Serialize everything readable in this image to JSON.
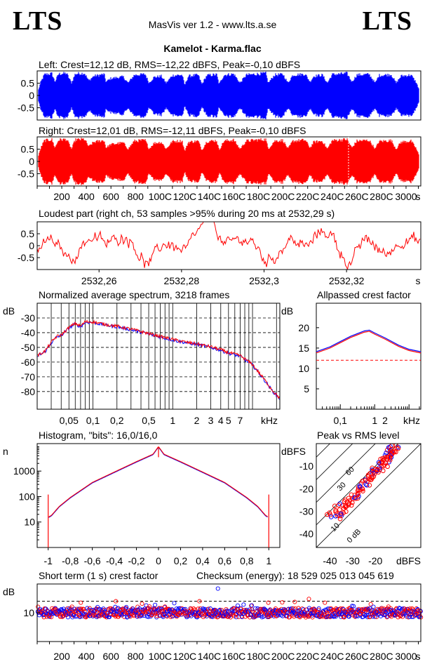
{
  "header": {
    "logo_left": "LTS",
    "logo_right": "LTS",
    "app_title": "MasVis ver 1.2 - www.lts.a.se",
    "file_title": "Kamelot - Karma.flac"
  },
  "colors": {
    "left": "#0000ff",
    "right": "#ff0000",
    "dash": "#ff0000",
    "grid": "#000000"
  },
  "chart_data": [
    {
      "id": "left",
      "type": "area",
      "title": "Left: Crest=12,12 dB, RMS=-12,22 dBFS, Peak=-0,10 dBFS",
      "y_ticks": [
        "0.5",
        "0",
        "-0.5"
      ],
      "ylim": [
        -1,
        1
      ],
      "xlim": [
        0,
        3120
      ],
      "envelope_points": [
        [
          0,
          0.05
        ],
        [
          30,
          0.6
        ],
        [
          60,
          0.92
        ],
        [
          120,
          0.96
        ],
        [
          145,
          0.6
        ],
        [
          175,
          0.95
        ],
        [
          240,
          0.97
        ],
        [
          280,
          0.55
        ],
        [
          310,
          0.95
        ],
        [
          385,
          0.98
        ],
        [
          420,
          0.65
        ],
        [
          460,
          0.85
        ],
        [
          545,
          0.93
        ],
        [
          560,
          0.6
        ],
        [
          600,
          0.75
        ],
        [
          700,
          0.82
        ],
        [
          740,
          0.55
        ],
        [
          790,
          0.9
        ],
        [
          880,
          0.93
        ],
        [
          910,
          0.55
        ],
        [
          950,
          0.8
        ],
        [
          1010,
          0.85
        ],
        [
          1050,
          0.55
        ],
        [
          1100,
          0.88
        ],
        [
          1180,
          0.9
        ],
        [
          1200,
          0.45
        ],
        [
          1230,
          0.85
        ],
        [
          1310,
          0.9
        ],
        [
          1340,
          0.5
        ],
        [
          1380,
          0.88
        ],
        [
          1460,
          0.92
        ],
        [
          1480,
          0.5
        ],
        [
          1520,
          0.9
        ],
        [
          1600,
          0.94
        ],
        [
          1650,
          0.55
        ],
        [
          1700,
          0.9
        ],
        [
          1800,
          0.95
        ],
        [
          1860,
          0.97
        ],
        [
          1880,
          0.55
        ],
        [
          1930,
          0.9
        ],
        [
          2000,
          0.93
        ],
        [
          2040,
          0.55
        ],
        [
          2080,
          0.9
        ],
        [
          2180,
          0.94
        ],
        [
          2220,
          0.6
        ],
        [
          2250,
          0.85
        ],
        [
          2320,
          0.9
        ],
        [
          2360,
          0.55
        ],
        [
          2400,
          0.92
        ],
        [
          2520,
          0.97
        ],
        [
          2560,
          0.6
        ],
        [
          2600,
          0.9
        ],
        [
          2700,
          0.93
        ],
        [
          2750,
          0.55
        ],
        [
          2780,
          0.88
        ],
        [
          2880,
          0.92
        ],
        [
          2920,
          0.55
        ],
        [
          2960,
          0.85
        ],
        [
          3040,
          0.9
        ],
        [
          3080,
          0.6
        ],
        [
          3120,
          0.1
        ]
      ]
    },
    {
      "id": "right",
      "type": "area",
      "title": "Right: Crest=12,01 dB, RMS=-12,11 dBFS, Peak=-0,10 dBFS",
      "y_ticks": [
        "0.5",
        "0",
        "-0.5"
      ],
      "ylim": [
        -1,
        1
      ],
      "xlim": [
        0,
        3120
      ],
      "x_ticks": [
        "200",
        "400",
        "600",
        "800",
        "100C",
        "120C",
        "140C",
        "160C",
        "180C",
        "200C",
        "220C",
        "240C",
        "260C",
        "280C",
        "3000",
        "s"
      ],
      "x_tick_values": [
        200,
        400,
        600,
        800,
        1000,
        1200,
        1400,
        1600,
        1800,
        2000,
        2200,
        2400,
        2600,
        2800,
        3000
      ],
      "marker_time": 2532.29
    },
    {
      "id": "loudest",
      "type": "line",
      "title": "Loudest part (right ch, 53 samples >95% during 20 ms at 2532,29 s)",
      "y_ticks": [
        "0.5",
        "0",
        "-0.5"
      ],
      "ylim": [
        -1,
        1
      ],
      "xlim": [
        2532.245,
        2532.338
      ],
      "x_ticks": [
        "2532,26",
        "2532,28",
        "2532,3",
        "2532,32",
        "s"
      ],
      "x_tick_values": [
        2532.26,
        2532.28,
        2532.3,
        2532.32
      ]
    },
    {
      "id": "spectrum",
      "type": "line",
      "title": "Normalized average spectrum, 3218 frames",
      "ylabel": "dB",
      "y_ticks": [
        "-30",
        "-40",
        "-50",
        "-60",
        "-70",
        "-80"
      ],
      "y_tick_values": [
        -30,
        -40,
        -50,
        -60,
        -70,
        -80
      ],
      "ylim": [
        -92,
        -20
      ],
      "xlim": [
        0.02,
        22
      ],
      "x_scale": "log",
      "x_ticks": [
        "0,05",
        "0,1",
        "0,2",
        "0,5",
        "1",
        "2",
        "3",
        "4",
        "5",
        "7",
        "kHz"
      ],
      "x_tick_values": [
        0.05,
        0.1,
        0.2,
        0.5,
        1,
        2,
        3,
        4,
        5,
        7
      ],
      "series": [
        {
          "x": [
            0.02,
            0.025,
            0.03,
            0.035,
            0.04,
            0.05,
            0.06,
            0.07,
            0.08,
            0.1,
            0.12,
            0.15,
            0.2,
            0.3,
            0.5,
            0.7,
            1,
            1.5,
            2,
            3,
            4,
            5,
            7,
            10,
            14,
            18,
            22
          ],
          "values": [
            -56,
            -53,
            -47,
            -43,
            -42,
            -37,
            -34,
            -36,
            -33,
            -33,
            -34,
            -35,
            -36,
            -38,
            -41,
            -43,
            -45,
            -47,
            -48,
            -50,
            -52,
            -54,
            -56,
            -62,
            -72,
            -80,
            -85
          ]
        }
      ]
    },
    {
      "id": "allpass",
      "type": "line",
      "title": "Allpassed crest factor",
      "ylabel": "dB",
      "y_ticks": [
        "20",
        "15",
        "10",
        "5"
      ],
      "y_tick_values": [
        20,
        15,
        10,
        5
      ],
      "ylim": [
        0,
        26
      ],
      "xlim": [
        0.02,
        22
      ],
      "x_scale": "log",
      "x_ticks": [
        "0,1",
        "1",
        "2",
        "kHz"
      ],
      "x_tick_values": [
        0.1,
        1,
        2
      ],
      "series": [
        {
          "x": [
            0.02,
            0.05,
            0.1,
            0.2,
            0.5,
            0.7,
            1,
            2,
            5,
            10,
            22
          ],
          "values": [
            14,
            15.2,
            16.5,
            17.8,
            19.1,
            19.3,
            18.6,
            17.4,
            15.6,
            14.6,
            14
          ]
        }
      ],
      "reference": 12
    },
    {
      "id": "histogram",
      "type": "line",
      "title": "Histogram, \"bits\": 16,0/16,0",
      "ylabel": "n",
      "y_scale": "log",
      "y_ticks": [
        "1000",
        "100",
        "10"
      ],
      "y_tick_values": [
        1000,
        100,
        10
      ],
      "ylim": [
        1,
        12000
      ],
      "xlim": [
        -1.1,
        1.1
      ],
      "x_ticks": [
        "-1",
        "-0,8",
        "-0,6",
        "-0,4",
        "-0,2",
        "0",
        "0,2",
        "0,4",
        "0,6",
        "0,8",
        "1"
      ],
      "x_tick_values": [
        -1,
        -0.8,
        -0.6,
        -0.4,
        -0.2,
        0,
        0.2,
        0.4,
        0.6,
        0.8,
        1
      ],
      "series": [
        {
          "x": [
            -1,
            -0.97,
            -0.9,
            -0.8,
            -0.6,
            -0.4,
            -0.2,
            -0.05,
            0,
            0.05,
            0.2,
            0.4,
            0.6,
            0.8,
            0.9,
            0.97,
            1
          ],
          "values": [
            15,
            18,
            40,
            90,
            350,
            900,
            2300,
            4500,
            9000,
            4500,
            2300,
            900,
            350,
            90,
            40,
            18,
            15
          ]
        }
      ]
    },
    {
      "id": "peakrms",
      "type": "scatter",
      "title": "Peak vs RMS level",
      "ylabel": "dBFS",
      "xlabel": "dBFS",
      "y_ticks": [
        "-10",
        "-20",
        "-30",
        "-40"
      ],
      "y_tick_values": [
        -10,
        -20,
        -30,
        -40
      ],
      "x_ticks": [
        "-40",
        "-30",
        "-20"
      ],
      "x_tick_values": [
        -40,
        -30,
        -20
      ],
      "xlim": [
        -46,
        0
      ],
      "ylim": [
        -46,
        0
      ],
      "diag_labels": [
        "60",
        "30",
        "10",
        "0 dB"
      ],
      "series": [
        {
          "name": "",
          "points": [
            [
              -34,
              -29
            ],
            [
              -32,
              -26
            ],
            [
              -30,
              -24
            ],
            [
              -28,
              -22
            ],
            [
              -26,
              -20
            ],
            [
              -24,
              -17
            ],
            [
              -22,
              -15
            ],
            [
              -20,
              -13
            ],
            [
              -18,
              -11
            ],
            [
              -16,
              -9
            ],
            [
              -15,
              -8
            ],
            [
              -14,
              -6
            ],
            [
              -13,
              -5
            ],
            [
              -12,
              -4
            ],
            [
              -11,
              -3
            ],
            [
              -36,
              -33
            ],
            [
              -33,
              -27
            ],
            [
              -27,
              -19
            ],
            [
              -25,
              -18
            ],
            [
              -21,
              -14
            ],
            [
              -19,
              -12
            ],
            [
              -17,
              -10
            ],
            [
              -14,
              -4
            ],
            [
              -13,
              -3
            ],
            [
              -12,
              -2
            ],
            [
              -15,
              -5
            ],
            [
              -16,
              -7
            ],
            [
              -18,
              -8
            ],
            [
              -20,
              -12
            ],
            [
              -23,
              -16
            ],
            [
              -29,
              -23
            ],
            [
              -31,
              -25
            ],
            [
              -35,
              -30
            ],
            [
              -38,
              -31
            ],
            [
              -40,
              -32
            ],
            [
              -37,
              -28
            ]
          ]
        }
      ]
    },
    {
      "id": "shortcrest",
      "type": "scatter",
      "title": "Short term (1 s) crest factor",
      "checksum_label": "Checksum (energy):  18 529 025 013 045 619",
      "ylabel": "dB",
      "y_ticks": [
        "10"
      ],
      "y_tick_values": [
        10
      ],
      "ylim": [
        0,
        20
      ],
      "xlim": [
        0,
        3120
      ],
      "x_ticks": [
        "200",
        "400",
        "600",
        "800",
        "100C",
        "120C",
        "140C",
        "160C",
        "180C",
        "200C",
        "220C",
        "240C",
        "260C",
        "280C",
        "3000",
        "s"
      ],
      "x_tick_values": [
        200,
        400,
        600,
        800,
        1000,
        1200,
        1400,
        1600,
        1800,
        2000,
        2200,
        2400,
        2600,
        2800,
        3000
      ],
      "reference": 14,
      "outliers": [
        [
          355,
          13.5
        ],
        [
          640,
          14
        ],
        [
          1320,
          14
        ],
        [
          1470,
          18.4
        ],
        [
          1880,
          13.5
        ],
        [
          2210,
          14.8
        ],
        [
          2340,
          13.5
        ]
      ]
    }
  ]
}
